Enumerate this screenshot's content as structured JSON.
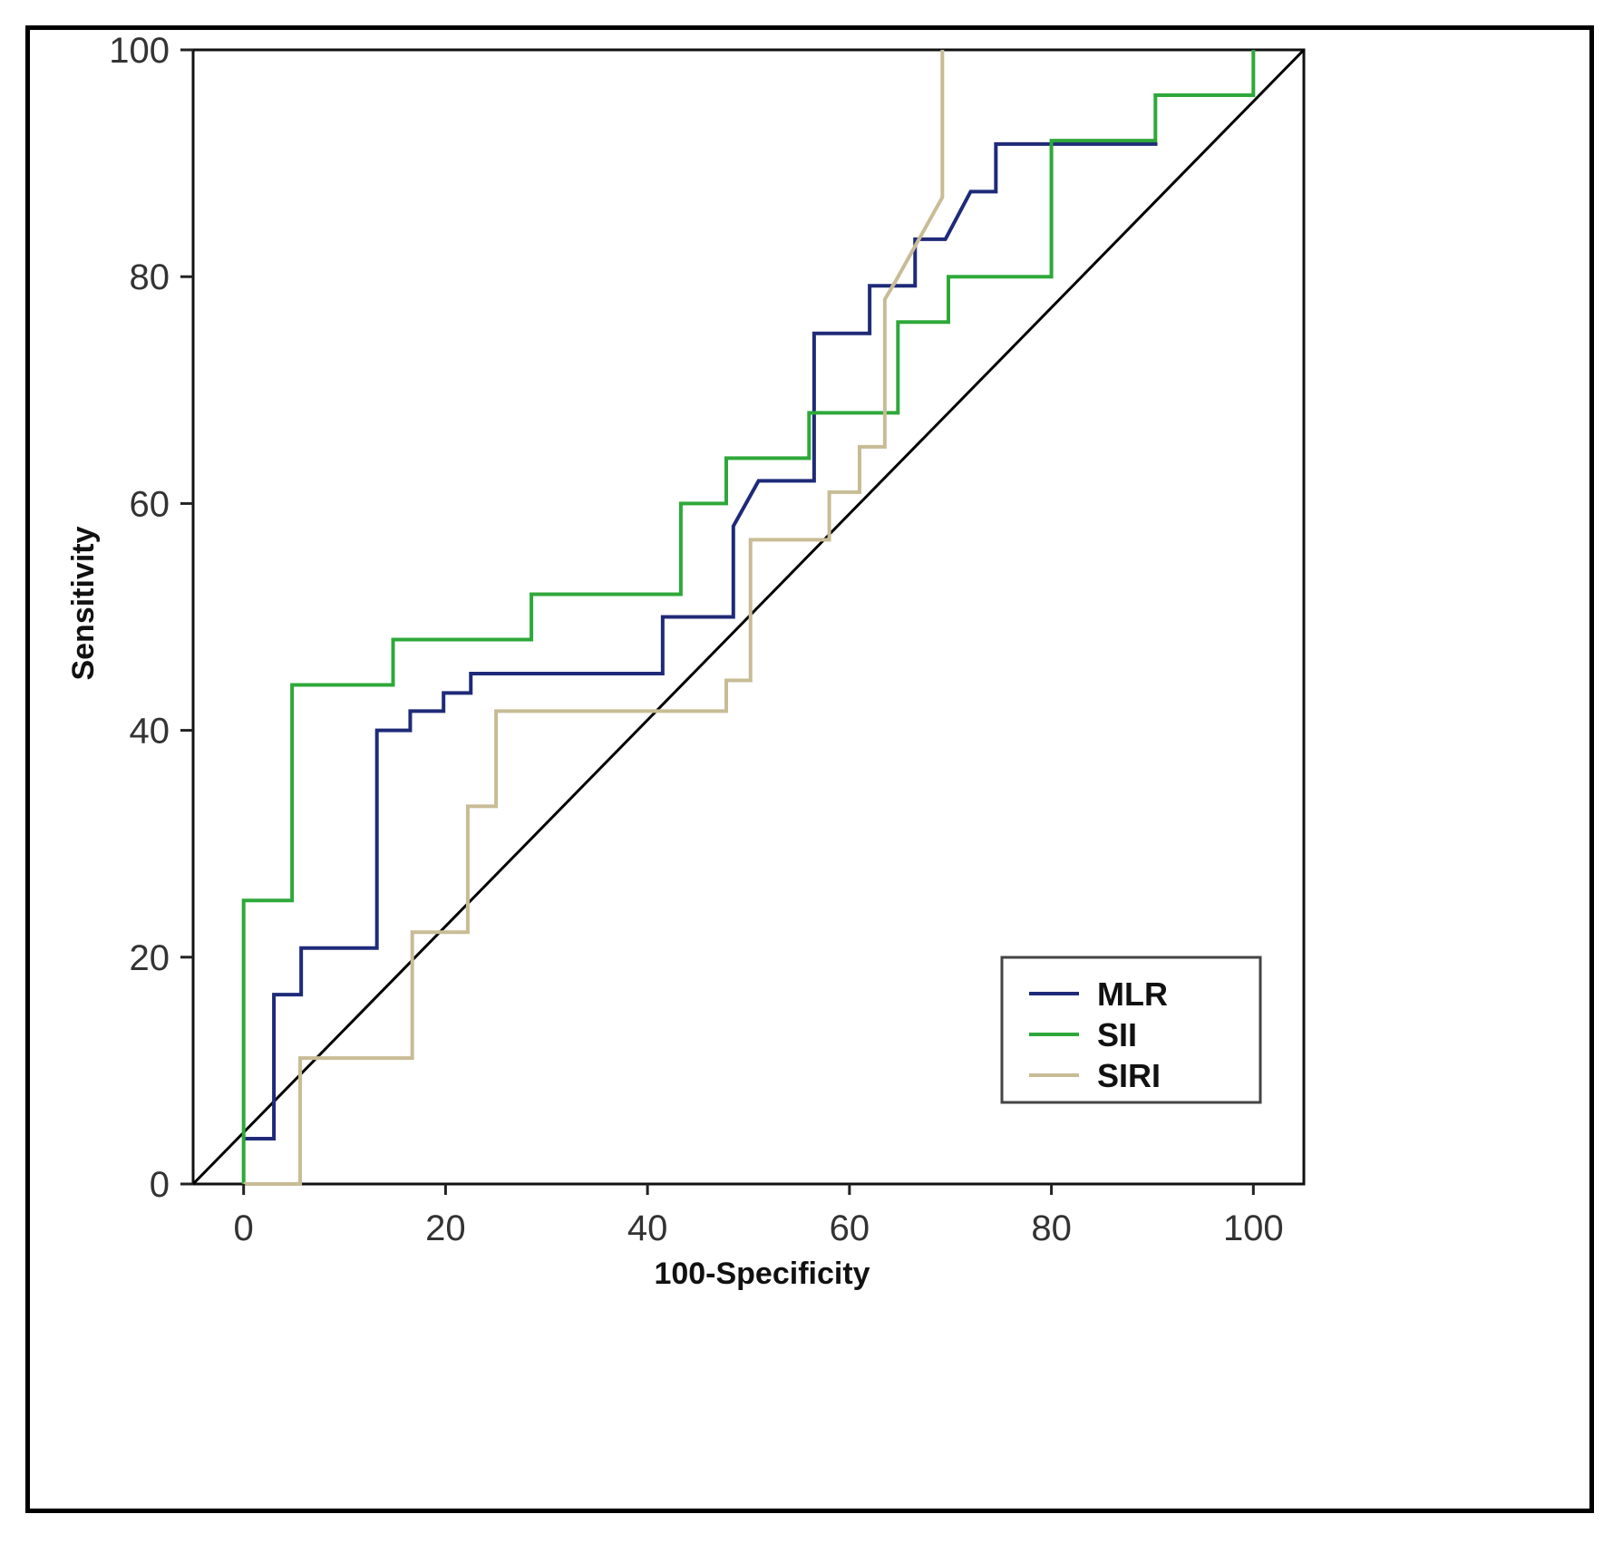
{
  "chart_data": {
    "type": "line",
    "title": "",
    "xlabel": "100-Specificity",
    "ylabel": "Sensitivity",
    "xlim": [
      -5,
      105
    ],
    "ylim": [
      0,
      100
    ],
    "xticks": [
      0,
      20,
      40,
      60,
      80,
      100
    ],
    "yticks": [
      0,
      20,
      40,
      60,
      80,
      100
    ],
    "x_tick_labels": [
      "0",
      "20",
      "40",
      "60",
      "80",
      "100"
    ],
    "y_tick_labels": [
      "0",
      "20",
      "40",
      "60",
      "80",
      "100"
    ],
    "grid": false,
    "legend_position": "bottom-right",
    "reference_line": {
      "name": "reference",
      "color": "#000000",
      "points": [
        [
          -5,
          0
        ],
        [
          105,
          100
        ]
      ]
    },
    "series": [
      {
        "name": "MLR",
        "color": "#1f2a78",
        "points": [
          [
            0,
            4
          ],
          [
            3,
            4
          ],
          [
            3,
            16.7
          ],
          [
            5.7,
            16.7
          ],
          [
            5.7,
            20.8
          ],
          [
            13.2,
            20.8
          ],
          [
            13.2,
            40
          ],
          [
            16.5,
            40
          ],
          [
            16.5,
            41.7
          ],
          [
            19.8,
            41.7
          ],
          [
            19.8,
            43.3
          ],
          [
            22.5,
            43.3
          ],
          [
            22.5,
            45
          ],
          [
            41.5,
            45
          ],
          [
            41.5,
            50
          ],
          [
            48.5,
            50
          ],
          [
            48.5,
            58
          ],
          [
            51,
            62
          ],
          [
            56.5,
            62
          ],
          [
            56.5,
            75
          ],
          [
            62,
            75
          ],
          [
            62,
            79.2
          ],
          [
            66.5,
            79.2
          ],
          [
            66.5,
            83.3
          ],
          [
            69.5,
            83.3
          ],
          [
            72,
            87.5
          ],
          [
            74.5,
            87.5
          ],
          [
            74.5,
            91.7
          ],
          [
            90.5,
            91.7
          ]
        ]
      },
      {
        "name": "SII",
        "color": "#2ea83a",
        "points": [
          [
            0,
            0
          ],
          [
            0,
            25
          ],
          [
            4.8,
            25
          ],
          [
            4.8,
            44
          ],
          [
            14.8,
            44
          ],
          [
            14.8,
            48
          ],
          [
            28.5,
            48
          ],
          [
            28.5,
            52
          ],
          [
            43.3,
            52
          ],
          [
            43.3,
            60
          ],
          [
            47.8,
            60
          ],
          [
            47.8,
            64
          ],
          [
            56,
            64
          ],
          [
            56,
            68
          ],
          [
            64.8,
            68
          ],
          [
            64.8,
            76
          ],
          [
            69.8,
            76
          ],
          [
            69.8,
            80
          ],
          [
            80,
            80
          ],
          [
            80,
            92
          ],
          [
            90.3,
            92
          ],
          [
            90.3,
            96
          ],
          [
            100,
            96
          ],
          [
            100,
            100
          ]
        ]
      },
      {
        "name": "SIRI",
        "color": "#c8bc96",
        "points": [
          [
            0,
            0
          ],
          [
            5.6,
            0
          ],
          [
            5.6,
            11.1
          ],
          [
            16.7,
            11.1
          ],
          [
            16.7,
            22.2
          ],
          [
            22.2,
            22.2
          ],
          [
            22.2,
            33.3
          ],
          [
            25,
            33.3
          ],
          [
            25,
            41.7
          ],
          [
            47.8,
            41.7
          ],
          [
            47.8,
            44.4
          ],
          [
            50.2,
            44.4
          ],
          [
            50.2,
            56.8
          ],
          [
            58,
            56.8
          ],
          [
            58,
            61
          ],
          [
            61,
            61
          ],
          [
            61,
            65
          ],
          [
            63.5,
            65
          ],
          [
            63.5,
            78
          ],
          [
            64.5,
            79.5
          ],
          [
            69.2,
            87
          ],
          [
            69.2,
            100
          ]
        ]
      }
    ]
  }
}
